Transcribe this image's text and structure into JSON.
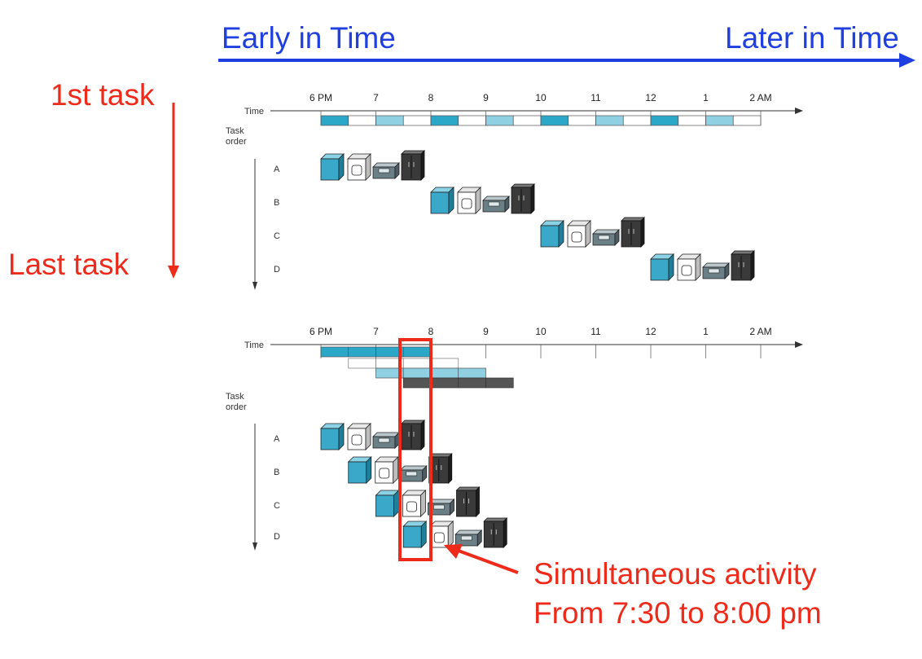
{
  "header": {
    "early_label": "Early in Time",
    "later_label": "Later in Time"
  },
  "side": {
    "first_label": "1st task",
    "last_label": "Last task"
  },
  "timeline": {
    "time_label": "Time",
    "task_order_line1": "Task",
    "task_order_line2": "order",
    "ticks": [
      "6 PM",
      "7",
      "8",
      "9",
      "10",
      "11",
      "12",
      "1",
      "2 AM"
    ],
    "tasks": [
      "A",
      "B",
      "C",
      "D"
    ]
  },
  "annotation": {
    "line1": "Simultaneous activity",
    "line2": "From 7:30 to 8:00 pm"
  },
  "colors": {
    "blue": "#1f3fe0",
    "red": "#ee2a1a",
    "washer": "#3aa9c9",
    "folder": "#6a7f86",
    "closet": "#3a3a3a"
  },
  "icons": [
    "washer-icon",
    "dryer-icon",
    "folder-icon",
    "closet-icon"
  ]
}
